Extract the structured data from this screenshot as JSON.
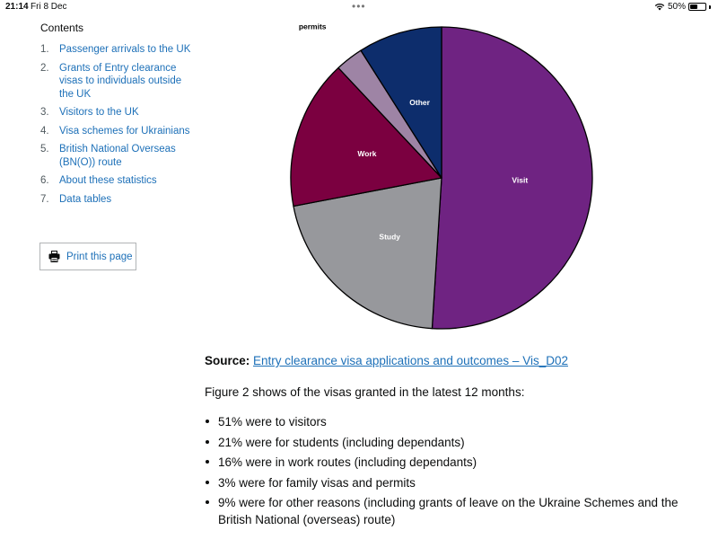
{
  "status_bar": {
    "time": "21:14",
    "date": "Fri 8 Dec",
    "battery": "50%",
    "battery_level": 0.5
  },
  "contents": {
    "heading": "Contents",
    "items": [
      {
        "num": "1.",
        "label": "Passenger arrivals to the UK"
      },
      {
        "num": "2.",
        "label": "Grants of Entry clearance visas to individuals outside the UK"
      },
      {
        "num": "3.",
        "label": "Visitors to the UK"
      },
      {
        "num": "4.",
        "label": "Visa schemes for Ukrainians"
      },
      {
        "num": "5.",
        "label": "British National Overseas (BN(O)) route"
      },
      {
        "num": "6.",
        "label": "About these statistics"
      },
      {
        "num": "7.",
        "label": "Data tables"
      }
    ]
  },
  "print_button": {
    "label": "Print this page",
    "icon": "printer-icon"
  },
  "chart_data": {
    "type": "pie",
    "title": "",
    "start_angle_deg": 0,
    "direction": "clockwise",
    "slices": [
      {
        "label": "Visit",
        "value": 51,
        "color": "#6f2382"
      },
      {
        "label": "Study",
        "value": 21,
        "color": "#97989c"
      },
      {
        "label": "Work",
        "value": 16,
        "color": "#7b0040"
      },
      {
        "label": "Family visas and permits",
        "value": 3,
        "color": "#9e84a5"
      },
      {
        "label": "Other",
        "value": 9,
        "color": "#0d2d6c"
      }
    ]
  },
  "source": {
    "label": "Source:",
    "link_text": "Entry clearance visa applications and outcomes – Vis_D02"
  },
  "intro": "Figure 2 shows of the visas granted in the latest 12 months:",
  "bullets": [
    "51% were to visitors",
    "21% were for students (including dependants)",
    "16% were in work routes (including dependants)",
    "3% were for family visas and permits",
    "9% were for other reasons (including grants of leave on the Ukraine Schemes and the British National (overseas) route)"
  ]
}
